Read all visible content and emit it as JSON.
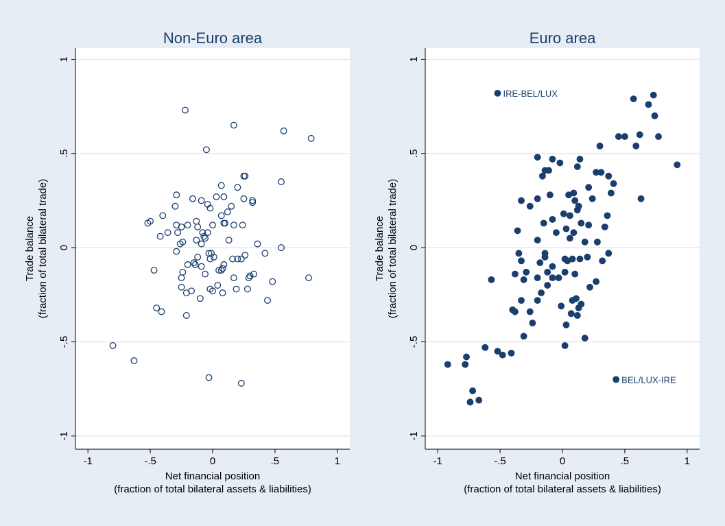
{
  "chart_data": [
    {
      "type": "scatter",
      "title": "Non-Euro area",
      "xlabel": [
        "Net financial position",
        "(fraction of total bilateral assets & liabilities)"
      ],
      "ylabel": [
        "Trade balance",
        "(fraction of total bilateral trade)"
      ],
      "xlim": [
        -1.1,
        1.1
      ],
      "ylim": [
        -1.07,
        1.06
      ],
      "xticks": [
        -1,
        {
          "value": -0.5,
          "label": "-.5"
        },
        0,
        {
          "value": 0.5,
          "label": ".5"
        },
        1
      ],
      "yticks": [
        -1,
        {
          "value": -0.5,
          "label": "-.5"
        },
        0,
        {
          "value": 0.5,
          "label": ".5"
        },
        1
      ],
      "grid": true,
      "marker_filled": false,
      "series": [
        {
          "color": "#1a3e6e",
          "x": [
            -0.22,
            0.17,
            0.57,
            0.79,
            -0.05,
            0.25,
            0.26,
            0.55,
            0.07,
            0.2,
            -0.16,
            0.03,
            0.09,
            0.25,
            -0.29,
            0.32,
            0.32,
            -0.09,
            -0.04,
            0.15,
            -0.3,
            -0.02,
            0.12,
            -0.4,
            0.07,
            -0.2,
            -0.25,
            -0.29,
            -0.13,
            -0.12,
            0.0,
            0.09,
            0.1,
            0.17,
            0.24,
            -0.5,
            -0.52,
            -0.36,
            -0.28,
            -0.08,
            -0.07,
            -0.06,
            -0.04,
            0.13,
            -0.42,
            -0.13,
            -0.09,
            -0.24,
            -0.26,
            0.36,
            0.55,
            -0.29,
            -0.03,
            -0.01,
            -0.12,
            -0.02,
            0.16,
            0.2,
            0.23,
            0.42,
            0.01,
            0.26,
            -0.15,
            -0.14,
            -0.09,
            0.09,
            -0.2,
            0.05,
            0.08,
            0.07,
            -0.47,
            -0.24,
            -0.06,
            0.17,
            0.29,
            0.3,
            0.33,
            0.48,
            0.77,
            -0.25,
            -0.25,
            -0.02,
            0.0,
            0.08,
            0.19,
            0.28,
            0.04,
            -0.21,
            -0.17,
            -0.1,
            0.44,
            -0.45,
            -0.41,
            -0.21,
            -0.8,
            -0.63,
            -0.03,
            0.23
          ],
          "y": [
            0.73,
            0.65,
            0.62,
            0.58,
            0.52,
            0.38,
            0.38,
            0.35,
            0.33,
            0.32,
            0.26,
            0.27,
            0.27,
            0.26,
            0.28,
            0.25,
            0.24,
            0.25,
            0.23,
            0.22,
            0.22,
            0.21,
            0.19,
            0.17,
            0.17,
            0.12,
            0.11,
            0.12,
            0.14,
            0.11,
            0.12,
            0.13,
            0.13,
            0.12,
            0.12,
            0.14,
            0.13,
            0.08,
            0.08,
            0.08,
            0.06,
            0.05,
            0.08,
            0.04,
            0.06,
            0.04,
            0.02,
            0.03,
            0.02,
            0.02,
            0.0,
            -0.02,
            -0.03,
            -0.03,
            -0.05,
            -0.06,
            -0.06,
            -0.06,
            -0.06,
            -0.03,
            -0.05,
            -0.04,
            -0.08,
            -0.09,
            -0.1,
            -0.09,
            -0.09,
            -0.12,
            -0.11,
            -0.12,
            -0.12,
            -0.13,
            -0.14,
            -0.16,
            -0.16,
            -0.15,
            -0.14,
            -0.18,
            -0.16,
            -0.16,
            -0.21,
            -0.22,
            -0.23,
            -0.24,
            -0.22,
            -0.22,
            -0.2,
            -0.24,
            -0.23,
            -0.27,
            -0.28,
            -0.32,
            -0.34,
            -0.36,
            -0.52,
            -0.6,
            -0.69,
            -0.72
          ]
        }
      ]
    },
    {
      "type": "scatter",
      "title": "Euro area",
      "xlabel": [
        "Net financial position",
        "(fraction of total bilateral assets & liabilities)"
      ],
      "ylabel": [
        "Trade balance",
        "(fraction of total bilateral trade)"
      ],
      "xlim": [
        -1.1,
        1.1
      ],
      "ylim": [
        -1.07,
        1.06
      ],
      "xticks": [
        -1,
        {
          "value": -0.5,
          "label": "-.5"
        },
        0,
        {
          "value": 0.5,
          "label": ".5"
        },
        1
      ],
      "yticks": [
        -1,
        {
          "value": -0.5,
          "label": "-.5"
        },
        0,
        {
          "value": 0.5,
          "label": ".5"
        },
        1
      ],
      "grid": true,
      "marker_filled": true,
      "annotations": [
        {
          "text": "IRE-BEL/LUX",
          "x": -0.52,
          "y": 0.82
        },
        {
          "text": "BEL/LUX-IRE",
          "x": 0.43,
          "y": -0.7
        }
      ],
      "series": [
        {
          "color": "#1a3e6e",
          "x": [
            -0.52,
            0.73,
            0.57,
            0.69,
            0.74,
            0.45,
            0.5,
            0.62,
            0.77,
            0.59,
            0.3,
            0.92,
            0.63,
            -0.2,
            -0.08,
            -0.02,
            0.14,
            0.12,
            -0.14,
            -0.11,
            -0.16,
            0.27,
            0.31,
            0.37,
            0.41,
            0.21,
            0.09,
            0.39,
            0.05,
            -0.1,
            -0.2,
            -0.26,
            -0.33,
            0.24,
            0.1,
            0.13,
            0.12,
            0.01,
            0.06,
            0.36,
            -0.08,
            -0.15,
            0.15,
            0.21,
            0.34,
            0.03,
            -0.05,
            0.09,
            -0.36,
            0.06,
            -0.2,
            0.28,
            0.18,
            -0.14,
            -0.35,
            -0.14,
            0.37,
            -0.33,
            0.02,
            0.04,
            0.2,
            0.08,
            0.14,
            0.32,
            -0.18,
            -0.08,
            -0.29,
            -0.12,
            -0.38,
            0.02,
            0.1,
            -0.03,
            -0.08,
            -0.2,
            -0.57,
            -0.31,
            0.27,
            -0.12,
            0.22,
            -0.17,
            0.11,
            0.08,
            -0.2,
            -0.33,
            0.15,
            -0.01,
            0.13,
            -0.26,
            -0.4,
            -0.38,
            0.12,
            0.07,
            -0.24,
            0.03,
            -0.31,
            0.18,
            0.02,
            -0.52,
            -0.48,
            -0.41,
            -0.62,
            -0.77,
            -0.92,
            -0.78,
            -0.72,
            -0.74,
            -0.67,
            0.43
          ],
          "y": [
            0.82,
            0.81,
            0.79,
            0.76,
            0.7,
            0.59,
            0.59,
            0.6,
            0.59,
            0.54,
            0.54,
            0.44,
            0.26,
            0.48,
            0.47,
            0.45,
            0.47,
            0.43,
            0.41,
            0.41,
            0.38,
            0.4,
            0.4,
            0.38,
            0.34,
            0.32,
            0.29,
            0.29,
            0.28,
            0.28,
            0.26,
            0.22,
            0.25,
            0.26,
            0.25,
            0.22,
            0.2,
            0.18,
            0.17,
            0.17,
            0.15,
            0.13,
            0.13,
            0.12,
            0.11,
            0.1,
            0.08,
            0.08,
            0.09,
            0.05,
            0.04,
            0.03,
            0.03,
            -0.03,
            -0.03,
            -0.05,
            -0.03,
            -0.07,
            -0.06,
            -0.07,
            -0.05,
            -0.06,
            -0.06,
            -0.07,
            -0.08,
            -0.1,
            -0.13,
            -0.13,
            -0.14,
            -0.13,
            -0.14,
            -0.16,
            -0.16,
            -0.16,
            -0.17,
            -0.17,
            -0.18,
            -0.2,
            -0.21,
            -0.24,
            -0.27,
            -0.28,
            -0.28,
            -0.28,
            -0.3,
            -0.31,
            -0.32,
            -0.34,
            -0.33,
            -0.34,
            -0.36,
            -0.35,
            -0.4,
            -0.41,
            -0.47,
            -0.48,
            -0.52,
            -0.55,
            -0.57,
            -0.56,
            -0.53,
            -0.58,
            -0.62,
            -0.62,
            -0.76,
            -0.82,
            -0.81,
            -0.7
          ]
        }
      ]
    }
  ]
}
